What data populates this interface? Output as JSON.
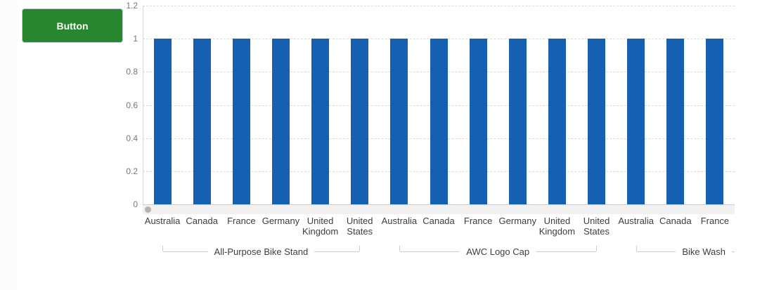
{
  "button": {
    "label": "Button"
  },
  "colors": {
    "button_bg": "#28872e",
    "button_border": "#c3ced8",
    "bar": "#1660b2",
    "axis_line": "#d6d6d6",
    "grid_line": "#dbdbdb",
    "zero_line": "#cfcfcf",
    "bracket_line": "#cccccc",
    "y_label": "#767676",
    "x_label": "#3d3d3d",
    "scroll_track": "#f1f1f1",
    "scroll_thumb": "#b3b3b3"
  },
  "chart_data": {
    "type": "bar",
    "title": "",
    "xlabel": "",
    "ylabel": "",
    "ylim": [
      0,
      1.2
    ],
    "grid": "horizontal-dashed",
    "legend": "none",
    "y_ticks": [
      {
        "value": 0,
        "label": "0"
      },
      {
        "value": 0.2,
        "label": "0.2"
      },
      {
        "value": 0.4,
        "label": "0.4"
      },
      {
        "value": 0.6,
        "label": "0.6"
      },
      {
        "value": 0.8,
        "label": "0.8"
      },
      {
        "value": 1,
        "label": "1"
      },
      {
        "value": 1.2,
        "label": "1.2"
      }
    ],
    "groups": [
      {
        "label": "All-Purpose Bike Stand",
        "categories": [
          "Australia",
          "Canada",
          "France",
          "Germany",
          "United Kingdom",
          "United States"
        ],
        "truncated": false
      },
      {
        "label": "AWC Logo Cap",
        "categories": [
          "Australia",
          "Canada",
          "France",
          "Germany",
          "United Kingdom",
          "United States"
        ],
        "truncated": false
      },
      {
        "label": "Bike Wash",
        "categories": [
          "Australia",
          "Canada",
          "France"
        ],
        "truncated": true
      }
    ],
    "series": [
      {
        "name": "",
        "values": [
          1,
          1,
          1,
          1,
          1,
          1,
          1,
          1,
          1,
          1,
          1,
          1,
          1,
          1,
          1
        ]
      }
    ],
    "scrollbar": {
      "visible": true,
      "position": "left"
    }
  }
}
